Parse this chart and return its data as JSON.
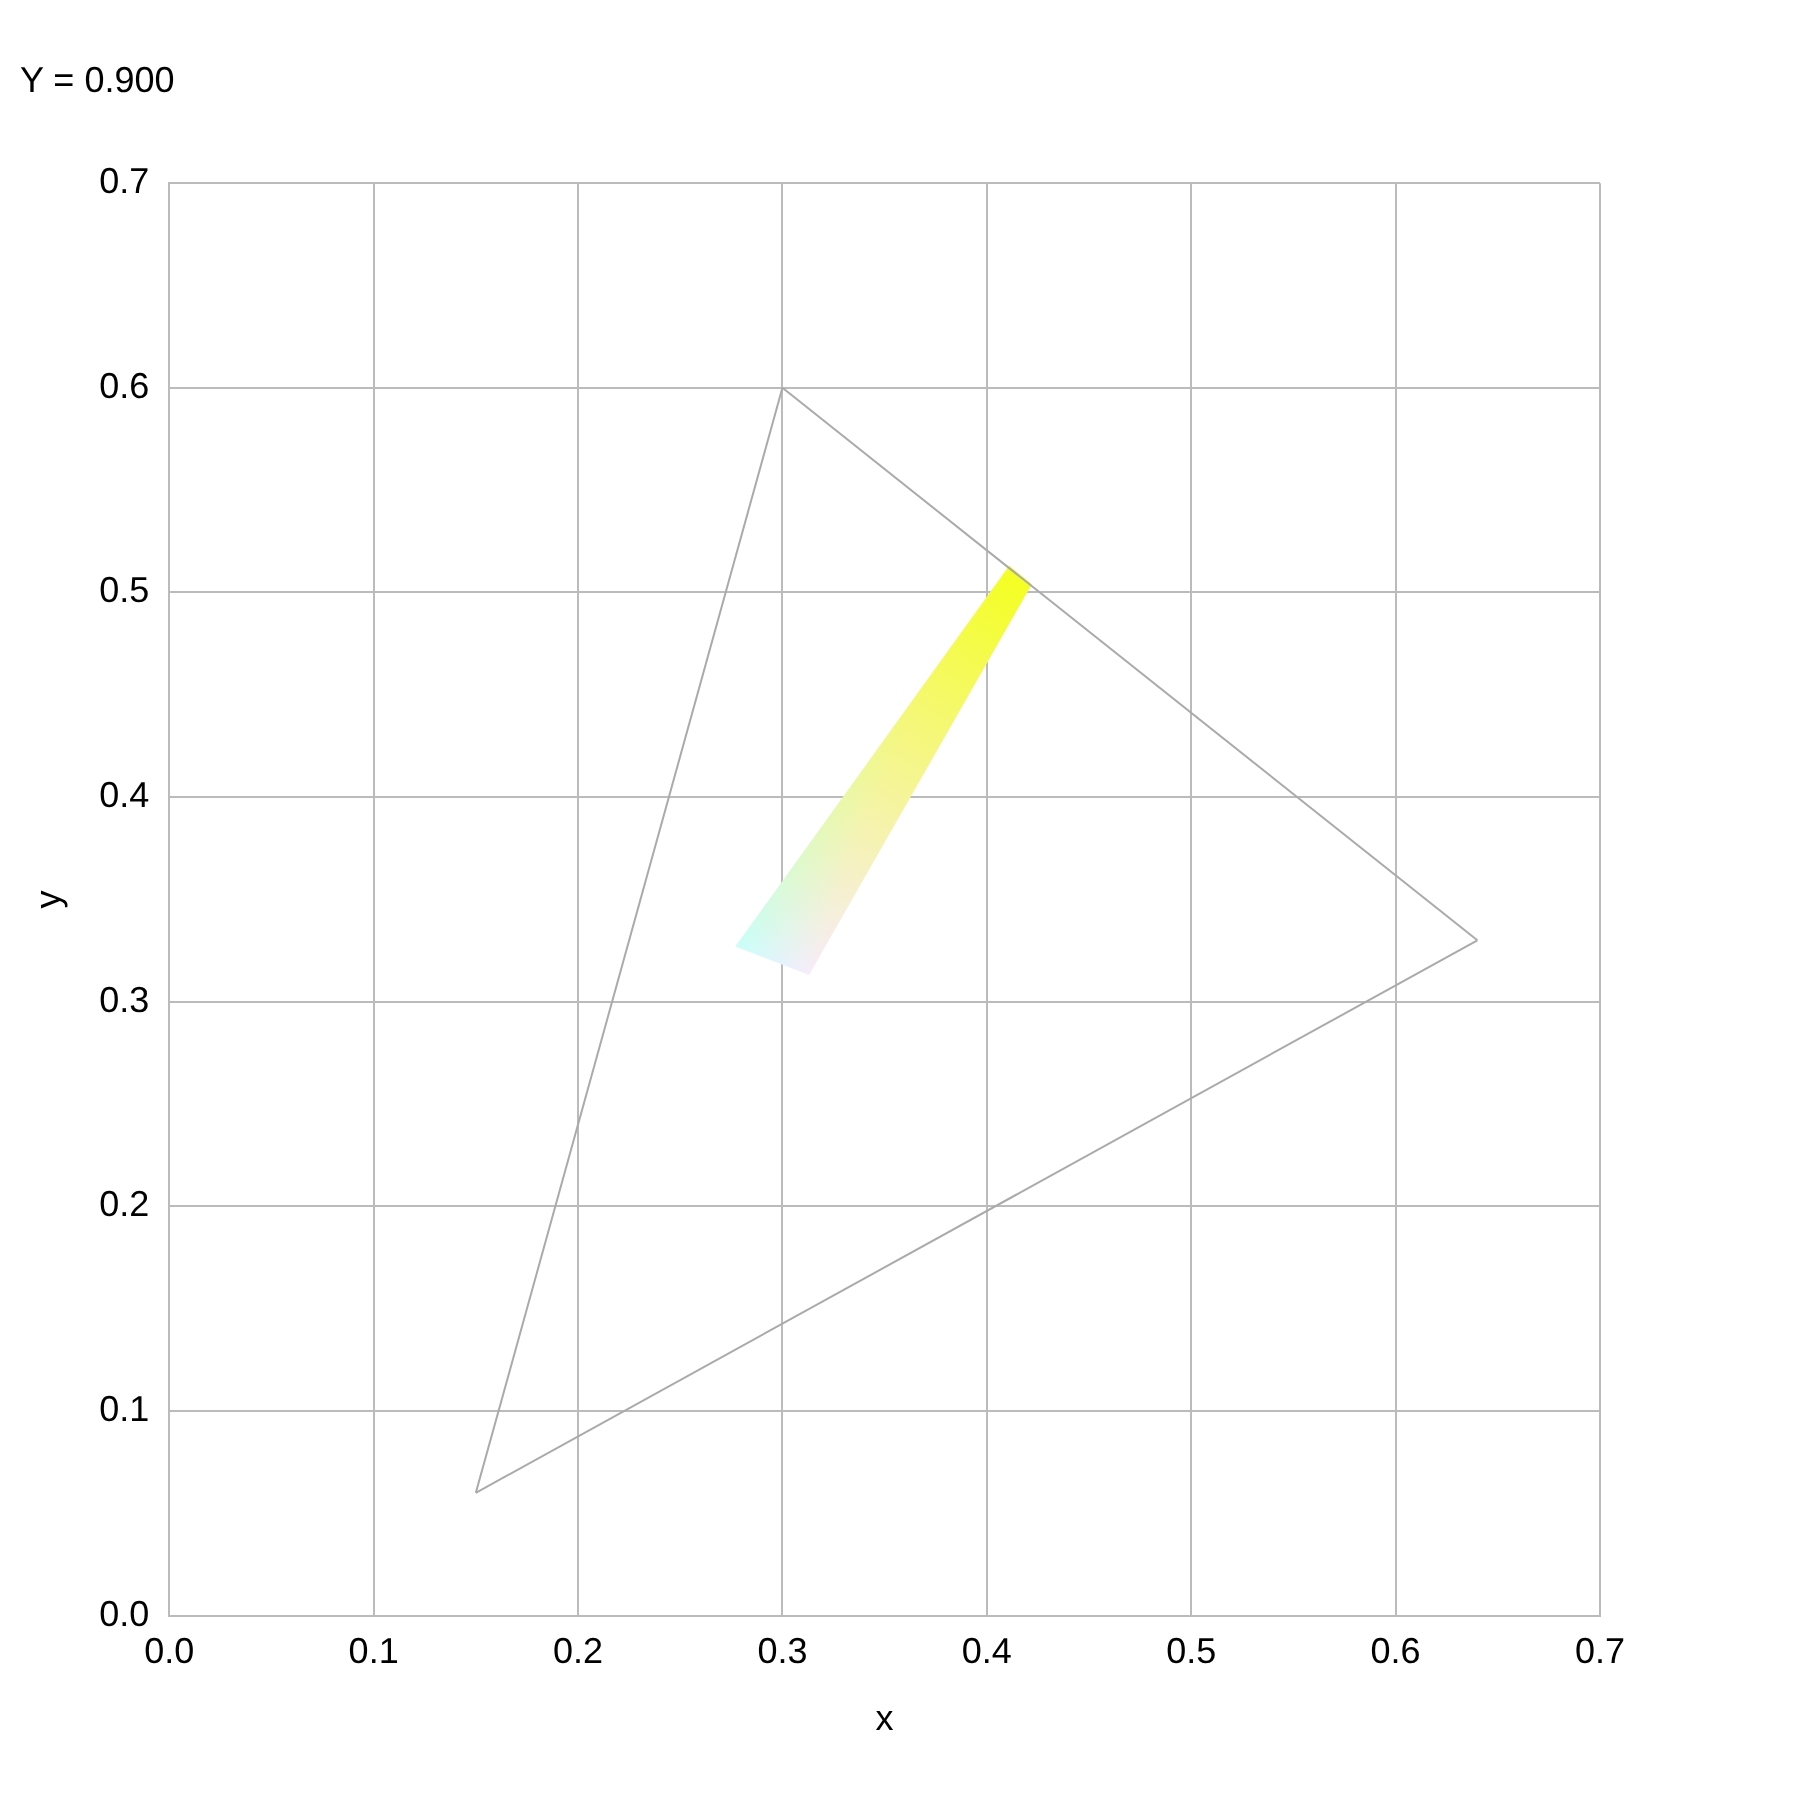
{
  "chart_data": {
    "type": "line",
    "title": "Y = 0.900",
    "xlabel": "x",
    "ylabel": "y",
    "xlim": [
      0,
      0.7
    ],
    "ylim": [
      0,
      0.7
    ],
    "xticks": [
      {
        "value": 0,
        "label": "0.0"
      },
      {
        "value": 0.1,
        "label": "0.1"
      },
      {
        "value": 0.2,
        "label": "0.2"
      },
      {
        "value": 0.3,
        "label": "0.3"
      },
      {
        "value": 0.4,
        "label": "0.4"
      },
      {
        "value": 0.5,
        "label": "0.5"
      },
      {
        "value": 0.6,
        "label": "0.6"
      },
      {
        "value": 0.7,
        "label": "0.7"
      }
    ],
    "yticks": [
      {
        "value": 0,
        "label": "0.0"
      },
      {
        "value": 0.1,
        "label": "0.1"
      },
      {
        "value": 0.2,
        "label": "0.2"
      },
      {
        "value": 0.3,
        "label": "0.3"
      },
      {
        "value": 0.4,
        "label": "0.4"
      },
      {
        "value": 0.5,
        "label": "0.5"
      },
      {
        "value": 0.6,
        "label": "0.6"
      },
      {
        "value": 0.7,
        "label": "0.7"
      }
    ],
    "grid": true,
    "legend": false,
    "marker": "none",
    "line_style": "solid",
    "series": [
      {
        "color": "#aaaaaa",
        "x": [
          0.15,
          0.3
        ],
        "values": [
          0.06,
          0.6
        ]
      },
      {
        "color": "#aaaaaa",
        "x": [
          0.3,
          0.64
        ],
        "values": [
          0.6,
          0.33
        ]
      },
      {
        "color": "#aaaaaa",
        "x": [
          0.15,
          0.64
        ],
        "values": [
          0.06,
          0.33
        ]
      },
      {
        "type": "area",
        "colors": [
          "#c8fff6",
          "#f6ecff",
          "#f4ff20",
          "#f4ff20"
        ],
        "x": [
          0.277,
          0.313,
          0.422,
          0.411
        ],
        "values": [
          0.327,
          0.313,
          0.504,
          0.513
        ]
      }
    ]
  }
}
